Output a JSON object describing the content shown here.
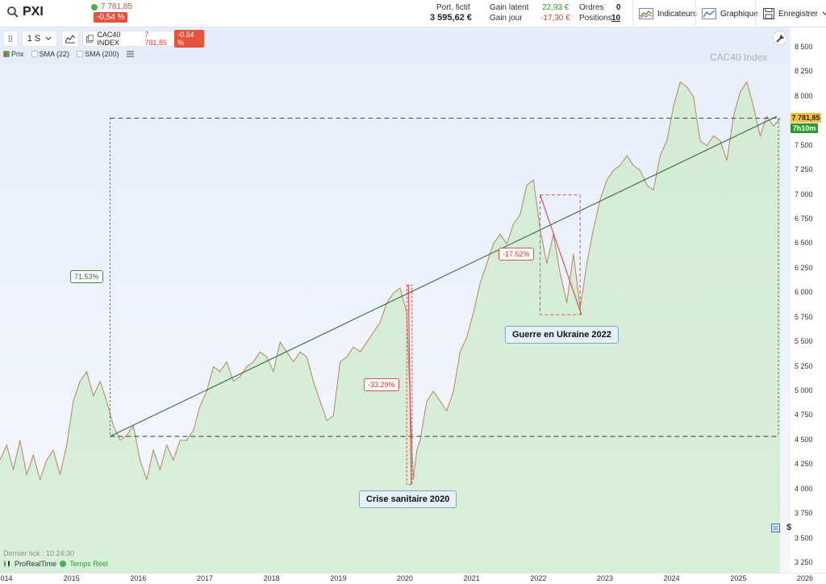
{
  "header": {
    "symbol": "PXI",
    "price": "7 781,85",
    "change": "-0,54 %",
    "portfolio_label": "Port. fictif",
    "portfolio_value": "3 595,62 €",
    "gain_latent_label": "Gain latent",
    "gain_latent_value": "22,93 €",
    "gain_jour_label": "Gain jour",
    "gain_jour_value": "-17,30 €",
    "ordres_label": "Ordres",
    "ordres_value": "0",
    "positions_label": "Positions",
    "positions_value": "10",
    "indicateurs_label": "Indicateurs",
    "graphique_label": "Graphique",
    "enregistrer_label": "Enregistrer"
  },
  "chart_toolbar": {
    "timeframe": "1 S",
    "instrument": "CAC40 INDEX",
    "instrument_price": "7 781,85",
    "instrument_change": "-0.54 %"
  },
  "legend": {
    "items": [
      "Prix",
      "SMA (22)",
      "SMA (200)"
    ]
  },
  "watermark": "CAC40 Index",
  "annotations": {
    "rise": "71.53%",
    "covid_drop": "-33.29%",
    "ukraine_drop": "-17.52%",
    "ukraine_label": "Guerre en Ukraine 2022",
    "covid_label": "Crise sanitaire 2020"
  },
  "price_tag": "7 781,85",
  "time_tag": "7h10m",
  "currency_icon": "$",
  "footer": {
    "last_tick": "Dernier tick : 10:24:30",
    "provider": "ProRealTime",
    "realtime": "Temps Réel"
  },
  "colors": {
    "up": "#4caf50",
    "down": "#e0453a",
    "area_fill": "#cfe9d2",
    "area_line": "#b8845e",
    "bg_top": "#e9f0fb",
    "trend": "#3d6b3d"
  },
  "chart_data": {
    "type": "area",
    "title": "CAC40 Index",
    "yticks": [
      "8 500",
      "8 250",
      "8 000",
      "7 750",
      "7 500",
      "7 250",
      "7 000",
      "6 750",
      "6 500",
      "6 250",
      "6 000",
      "5 750",
      "5 500",
      "5 250",
      "5 000",
      "4 750",
      "4 500",
      "4 250",
      "4 000",
      "3 750",
      "3 500",
      "3 250"
    ],
    "xticks": [
      "014",
      "2015",
      "2016",
      "2017",
      "2018",
      "2019",
      "2020",
      "2021",
      "2022",
      "2023",
      "2024",
      "2025",
      "2026"
    ],
    "ylim": [
      3200,
      8600
    ],
    "x": [
      2014.0,
      2014.1,
      2014.2,
      2014.3,
      2014.4,
      2014.5,
      2014.6,
      2014.7,
      2014.8,
      2014.9,
      2015.0,
      2015.1,
      2015.2,
      2015.3,
      2015.4,
      2015.5,
      2015.6,
      2015.7,
      2015.8,
      2015.9,
      2016.0,
      2016.1,
      2016.2,
      2016.3,
      2016.4,
      2016.5,
      2016.6,
      2016.7,
      2016.8,
      2016.9,
      2017.0,
      2017.1,
      2017.2,
      2017.3,
      2017.4,
      2017.5,
      2017.6,
      2017.7,
      2017.8,
      2017.9,
      2018.0,
      2018.1,
      2018.2,
      2018.3,
      2018.4,
      2018.5,
      2018.6,
      2018.7,
      2018.8,
      2018.9,
      2019.0,
      2019.1,
      2019.2,
      2019.3,
      2019.4,
      2019.5,
      2019.6,
      2019.7,
      2019.8,
      2019.9,
      2020.0,
      2020.1,
      2020.15,
      2020.2,
      2020.25,
      2020.3,
      2020.4,
      2020.5,
      2020.6,
      2020.7,
      2020.8,
      2020.9,
      2021.0,
      2021.1,
      2021.2,
      2021.3,
      2021.4,
      2021.5,
      2021.6,
      2021.7,
      2021.8,
      2021.9,
      2022.0,
      2022.1,
      2022.2,
      2022.3,
      2022.4,
      2022.5,
      2022.6,
      2022.7,
      2022.8,
      2022.9,
      2023.0,
      2023.1,
      2023.2,
      2023.3,
      2023.4,
      2023.5,
      2023.6,
      2023.7,
      2023.8,
      2023.9,
      2024.0,
      2024.1,
      2024.2,
      2024.3,
      2024.4,
      2024.5,
      2024.6,
      2024.7,
      2024.8,
      2024.9,
      2025.0,
      2025.1,
      2025.2,
      2025.3,
      2025.4,
      2025.5,
      2025.6,
      2025.7
    ],
    "values": [
      4300,
      4450,
      4200,
      4500,
      4150,
      4350,
      4100,
      4300,
      4400,
      4150,
      4450,
      4900,
      5100,
      5200,
      4950,
      5100,
      4900,
      4650,
      4500,
      4550,
      4650,
      4300,
      4100,
      4400,
      4200,
      4450,
      4300,
      4500,
      4500,
      4600,
      4850,
      5000,
      5250,
      5200,
      5300,
      5100,
      5150,
      5250,
      5300,
      5400,
      5350,
      5200,
      5500,
      5400,
      5300,
      5400,
      5350,
      5100,
      4900,
      4700,
      4750,
      5300,
      5350,
      5450,
      5400,
      5500,
      5600,
      5700,
      5900,
      6000,
      6050,
      5800,
      4900,
      4100,
      4400,
      4500,
      4900,
      5000,
      4900,
      4800,
      5000,
      5400,
      5550,
      5800,
      6100,
      6300,
      6500,
      6600,
      6500,
      6700,
      6800,
      7100,
      7150,
      6650,
      6300,
      6600,
      6200,
      5900,
      6400,
      5850,
      6300,
      6650,
      6950,
      7150,
      7250,
      7300,
      7400,
      7300,
      7250,
      7100,
      7050,
      7400,
      7550,
      7900,
      8150,
      8100,
      8000,
      7550,
      7500,
      7600,
      7550,
      7350,
      7800,
      8050,
      8150,
      7900,
      7600,
      7800,
      7700,
      7781
    ]
  }
}
